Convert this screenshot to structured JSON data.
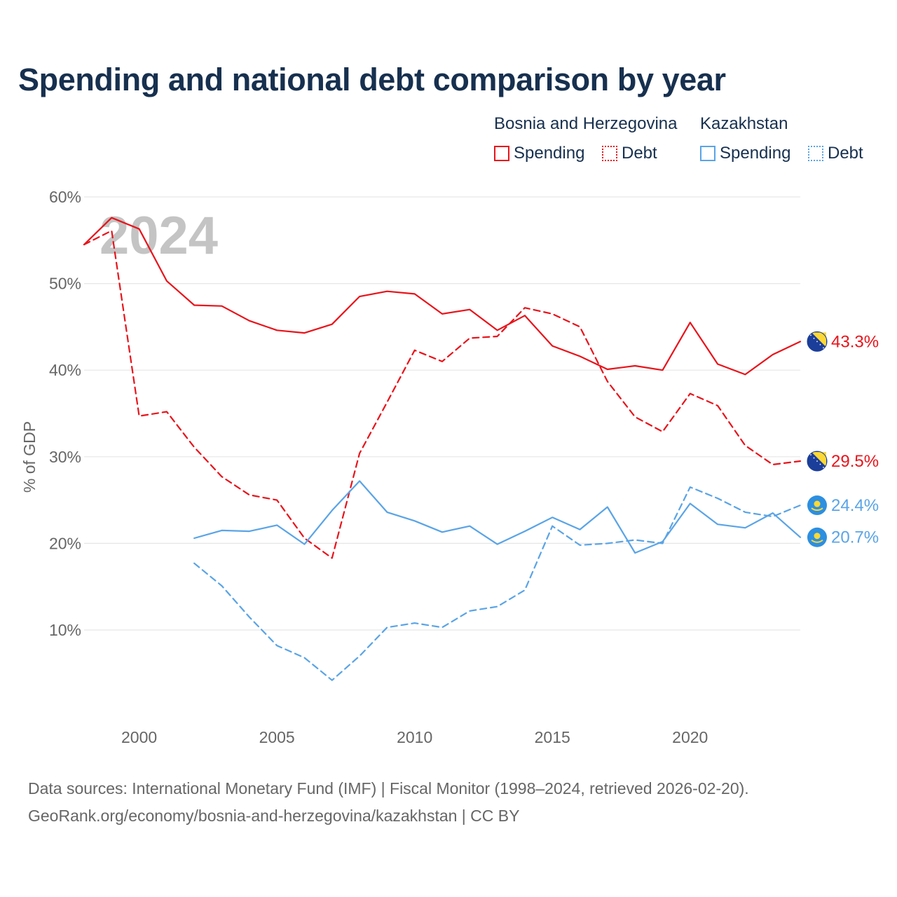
{
  "chart_data": {
    "type": "line",
    "title": "Spending and national debt comparison by year",
    "ylabel": "% of GDP",
    "xlabel": "",
    "year_watermark": "2024",
    "ylim": [
      0,
      60
    ],
    "xlim": [
      1998,
      2024
    ],
    "y_ticks": [
      10,
      20,
      30,
      40,
      50,
      60
    ],
    "y_tick_labels": [
      "10%",
      "20%",
      "30%",
      "40%",
      "50%",
      "60%"
    ],
    "x_ticks": [
      2000,
      2005,
      2010,
      2015,
      2020
    ],
    "x_tick_labels": [
      "2000",
      "2005",
      "2010",
      "2015",
      "2020"
    ],
    "grid": true,
    "legend": {
      "placement": "top-right",
      "groups": [
        {
          "country": "Bosnia and Herzegovina",
          "items": [
            "Spending",
            "Debt"
          ]
        },
        {
          "country": "Kazakhstan",
          "items": [
            "Spending",
            "Debt"
          ]
        }
      ]
    },
    "series": [
      {
        "name": "Bosnia and Herzegovina Spending",
        "country": "Bosnia and Herzegovina",
        "kind": "Spending",
        "color": "#e8141b",
        "dash": "solid",
        "x": [
          1998,
          1999,
          2000,
          2001,
          2002,
          2003,
          2004,
          2005,
          2006,
          2007,
          2008,
          2009,
          2010,
          2011,
          2012,
          2013,
          2014,
          2015,
          2016,
          2017,
          2018,
          2019,
          2020,
          2021,
          2022,
          2023,
          2024
        ],
        "values": [
          54.5,
          57.6,
          56.3,
          50.3,
          47.5,
          47.4,
          45.7,
          44.6,
          44.3,
          45.3,
          48.5,
          49.1,
          48.8,
          46.5,
          47.0,
          44.6,
          46.3,
          42.8,
          41.6,
          40.1,
          40.5,
          40.0,
          45.5,
          40.7,
          39.5,
          41.8,
          43.3
        ],
        "end_label": "43.3%"
      },
      {
        "name": "Bosnia and Herzegovina Debt",
        "country": "Bosnia and Herzegovina",
        "kind": "Debt",
        "color": "#e8141b",
        "dash": "dashed",
        "x": [
          1998,
          1999,
          2000,
          2001,
          2002,
          2003,
          2004,
          2005,
          2006,
          2007,
          2008,
          2009,
          2010,
          2011,
          2012,
          2013,
          2014,
          2015,
          2016,
          2017,
          2018,
          2019,
          2020,
          2021,
          2022,
          2023,
          2024
        ],
        "values": [
          54.5,
          56.1,
          34.7,
          35.2,
          31.1,
          27.7,
          25.6,
          25.0,
          20.6,
          18.3,
          30.4,
          36.3,
          42.3,
          41.0,
          43.7,
          43.9,
          47.2,
          46.5,
          45.0,
          38.7,
          34.6,
          32.9,
          37.3,
          35.9,
          31.3,
          29.1,
          29.5
        ],
        "end_label": "29.5%"
      },
      {
        "name": "Kazakhstan Spending",
        "country": "Kazakhstan",
        "kind": "Spending",
        "color": "#5aa4e6",
        "dash": "solid",
        "x": [
          2002,
          2003,
          2004,
          2005,
          2006,
          2007,
          2008,
          2009,
          2010,
          2011,
          2012,
          2013,
          2014,
          2015,
          2016,
          2017,
          2018,
          2019,
          2020,
          2021,
          2022,
          2023,
          2024
        ],
        "values": [
          20.6,
          21.5,
          21.4,
          22.1,
          19.9,
          23.8,
          27.2,
          23.6,
          22.6,
          21.3,
          22.0,
          19.9,
          21.4,
          23.0,
          21.6,
          24.2,
          18.9,
          20.2,
          24.6,
          22.2,
          21.8,
          23.5,
          20.7
        ],
        "end_label": "20.7%"
      },
      {
        "name": "Kazakhstan Debt",
        "country": "Kazakhstan",
        "kind": "Debt",
        "color": "#5aa4e6",
        "dash": "dashed",
        "x": [
          2002,
          2003,
          2004,
          2005,
          2006,
          2007,
          2008,
          2009,
          2010,
          2011,
          2012,
          2013,
          2014,
          2015,
          2016,
          2017,
          2018,
          2019,
          2020,
          2021,
          2022,
          2023,
          2024
        ],
        "values": [
          17.7,
          15.1,
          11.5,
          8.2,
          6.8,
          4.2,
          7.0,
          10.3,
          10.8,
          10.3,
          12.2,
          12.7,
          14.6,
          22.0,
          19.8,
          20.0,
          20.4,
          20.0,
          26.5,
          25.2,
          23.6,
          23.1,
          24.4
        ],
        "end_label": "24.4%"
      }
    ]
  },
  "sources": {
    "line1": "Data sources: International Monetary Fund (IMF) | Fiscal Monitor (1998–2024, retrieved 2026-02-20).",
    "line2": "GeoRank.org/economy/bosnia-and-herzegovina/kazakhstan | CC BY"
  },
  "colors": {
    "title": "#17304f",
    "bih": "#e8141b",
    "kaz": "#5aa4e6",
    "grid": "#e6e6e6",
    "axis_text": "#666666",
    "watermark": "#c4c4c4"
  }
}
